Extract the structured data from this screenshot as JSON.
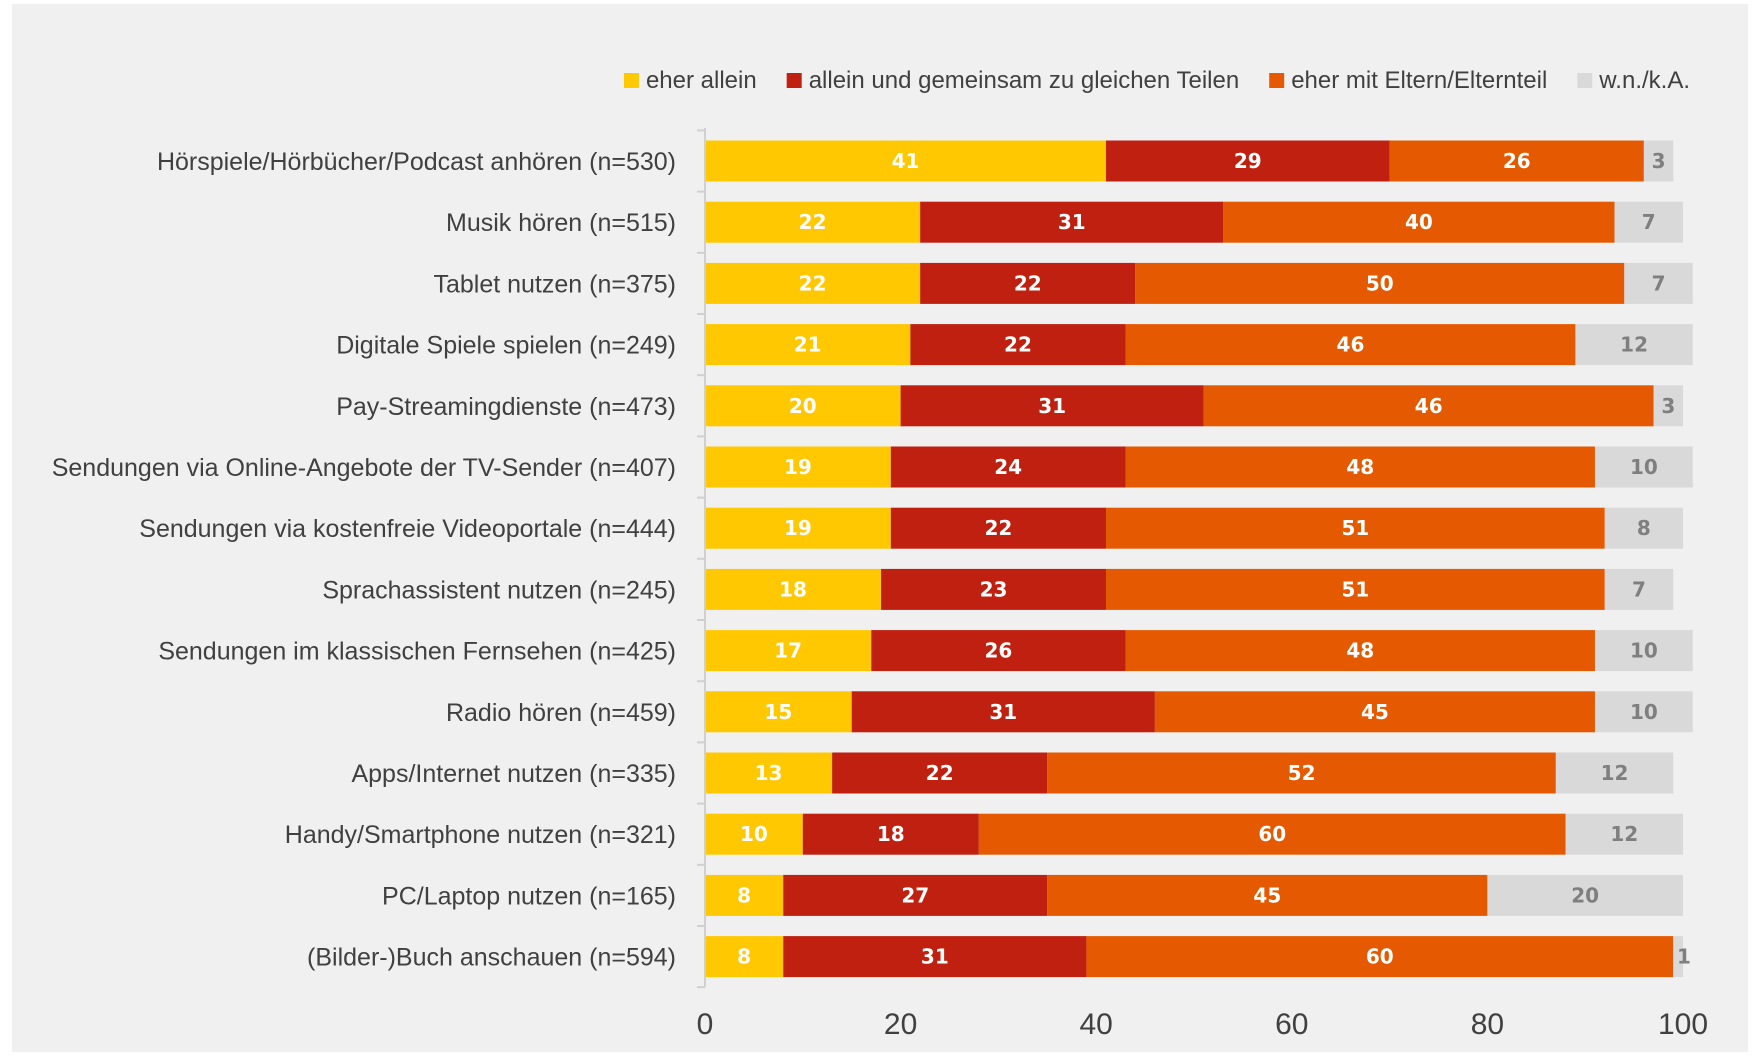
{
  "chart_data": {
    "type": "bar",
    "orientation": "horizontal",
    "stacked": true,
    "title": "",
    "xlabel": "",
    "ylabel": "",
    "xlim": [
      0,
      100
    ],
    "x_ticks": [
      "0",
      "20",
      "40",
      "60",
      "80",
      "100"
    ],
    "legend_position": "top-right",
    "grid": false,
    "categories": [
      "Hörspiele/Hörbücher/Podcast anhören (n=530)",
      "Musik hören (n=515)",
      "Tablet nutzen (n=375)",
      "Digitale Spiele spielen (n=249)",
      "Pay-Streamingdienste (n=473)",
      "Sendungen via Online-Angebote der TV-Sender (n=407)",
      "Sendungen via kostenfreie Videoportale (n=444)",
      "Sprachassistent nutzen (n=245)",
      "Sendungen im klassischen Fernsehen (n=425)",
      "Radio hören (n=459)",
      "Apps/Internet nutzen (n=335)",
      "Handy/Smartphone nutzen (n=321)",
      "PC/Laptop nutzen (n=165)",
      "(Bilder-)Buch anschauen (n=594)"
    ],
    "series": [
      {
        "name": "eher allein",
        "color": "#ffc800",
        "label_color": "#ffffff",
        "values": [
          41,
          22,
          22,
          21,
          20,
          19,
          19,
          18,
          17,
          15,
          13,
          10,
          8,
          8
        ]
      },
      {
        "name": "allein und gemeinsam zu gleichen Teilen",
        "color": "#c0200f",
        "label_color": "#ffffff",
        "values": [
          29,
          31,
          22,
          22,
          31,
          24,
          22,
          23,
          26,
          31,
          22,
          18,
          27,
          31
        ]
      },
      {
        "name": "eher mit Eltern/Elternteil",
        "color": "#e55a00",
        "label_color": "#ffffff",
        "values": [
          26,
          40,
          50,
          46,
          46,
          48,
          51,
          51,
          48,
          45,
          52,
          60,
          45,
          60
        ]
      },
      {
        "name": "w.n./k.A.",
        "color": "#d9d9d9",
        "label_color": "#7f7f7f",
        "values": [
          3,
          7,
          7,
          12,
          3,
          10,
          8,
          7,
          10,
          10,
          12,
          12,
          20,
          1
        ]
      }
    ]
  }
}
